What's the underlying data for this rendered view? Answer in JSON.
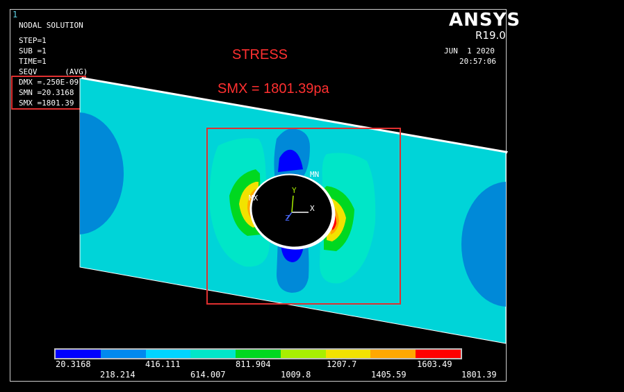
{
  "window_number": "1",
  "header": {
    "solution_type": "NODAL SOLUTION",
    "step": "STEP=1",
    "sub": "SUB =1",
    "time": "TIME=1",
    "result": "SEQV      (AVG)",
    "dmx": "DMX =.250E-09",
    "smn": "SMN =20.3168",
    "smx": "SMX =1801.39"
  },
  "brand": {
    "name": "ANSYS",
    "version": "R19.0",
    "date": "JUN  1 2020",
    "time": "20:57:06"
  },
  "annotations": {
    "title": "STRESS",
    "smx_note": "SMX = 1801.39pa"
  },
  "markers": {
    "max": "MX",
    "min": "MN",
    "axis_x": "X",
    "axis_y": "Y",
    "axis_z": "Z"
  },
  "legend": {
    "colors": [
      "#0000ff",
      "#0089ee",
      "#00d4ff",
      "#00e6c8",
      "#00d820",
      "#a8ef00",
      "#f2e200",
      "#ffa800",
      "#ff0000"
    ],
    "top_labels": [
      "20.3168",
      "416.111",
      "811.904",
      "1207.7",
      "1603.49"
    ],
    "bottom_labels": [
      "218.214",
      "614.007",
      "1009.8",
      "1405.59",
      "1801.39"
    ]
  }
}
